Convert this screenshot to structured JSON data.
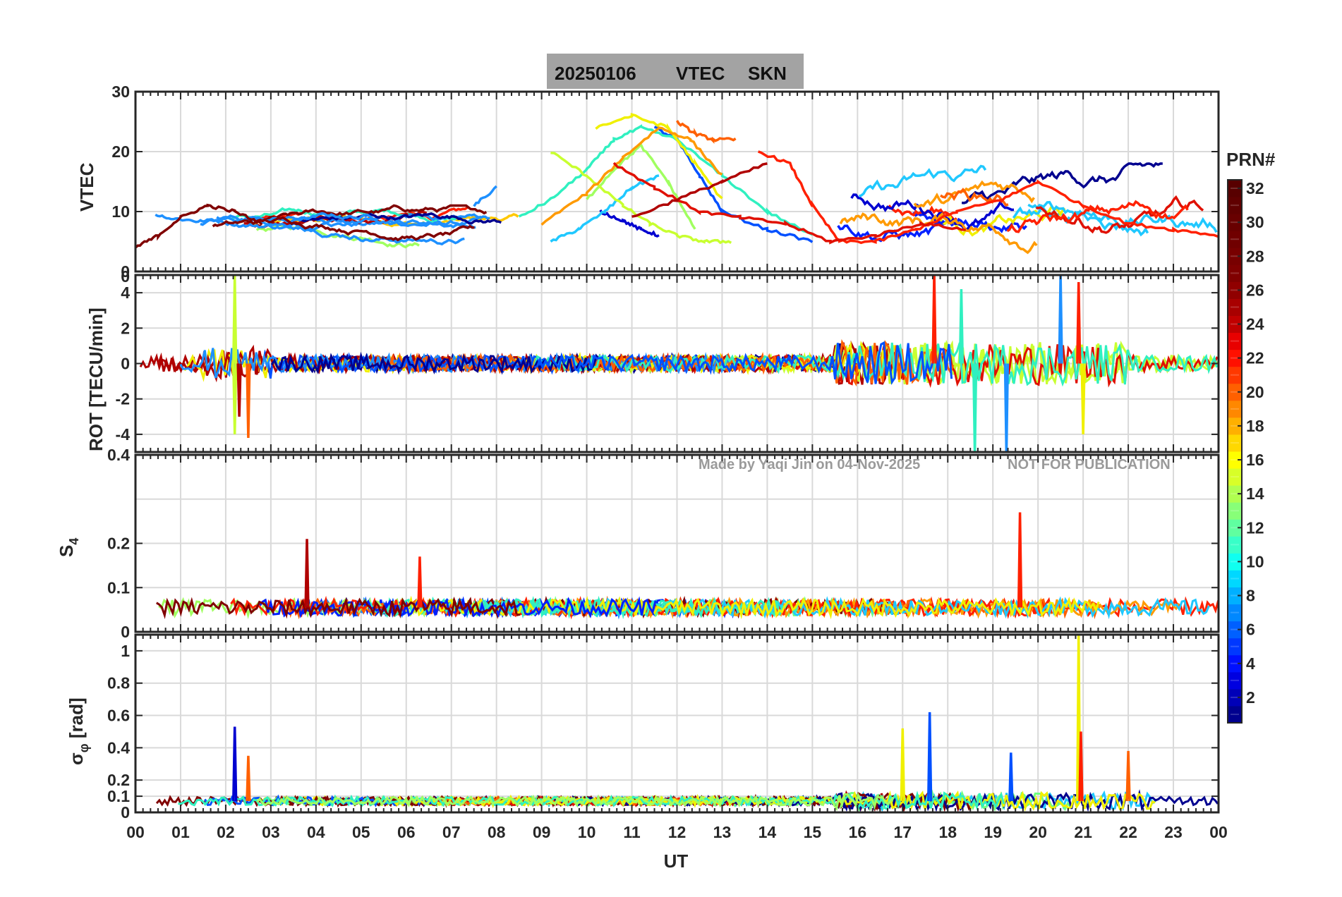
{
  "title": {
    "date": "20250106",
    "quantity": "VTEC",
    "station": "SKN"
  },
  "watermark": {
    "made_by": "Made by Yaqi Jin on 04-Nov-2025",
    "notice": "NOT FOR PUBLICATION"
  },
  "colorbar": {
    "label": "PRN#",
    "min": 1,
    "max": 32,
    "ticks": [
      "2",
      "4",
      "6",
      "8",
      "10",
      "12",
      "14",
      "16",
      "18",
      "20",
      "22",
      "24",
      "26",
      "28",
      "30",
      "32"
    ],
    "colormap": "jet"
  },
  "chart_data": [
    {
      "type": "line",
      "panel": "vtec",
      "ylabel": "VTEC",
      "ylim": [
        0,
        30
      ],
      "ytick_labels": [
        "10",
        "20",
        "30"
      ],
      "x_unit": "UT hour",
      "xlim": [
        0,
        24
      ],
      "series": [
        {
          "prn": 3,
          "color": "#0000d0",
          "x": [
            10.3,
            10.8,
            11.2,
            11.6
          ],
          "y": [
            10,
            8.5,
            7,
            6
          ]
        },
        {
          "prn": 6,
          "color": "#0050ff",
          "x": [
            11.5,
            12.0,
            12.5,
            13.0,
            14.0,
            15.0
          ],
          "y": [
            24,
            22,
            16,
            10,
            7,
            5
          ]
        },
        {
          "prn": 9,
          "color": "#1e90ff",
          "x": [
            7.5,
            8.0
          ],
          "y": [
            11,
            14
          ]
        },
        {
          "prn": 12,
          "color": "#20c8ff",
          "x": [
            9.2,
            9.8,
            10.4,
            11.0,
            11.6
          ],
          "y": [
            5,
            7,
            10,
            14,
            16
          ]
        },
        {
          "prn": 14,
          "color": "#30f0c0",
          "x": [
            8.5,
            9.2,
            10.0,
            10.6,
            11.2,
            12.0,
            13.0,
            14.0,
            15.0
          ],
          "y": [
            9,
            12,
            17,
            22,
            24,
            22,
            16,
            10,
            6
          ]
        },
        {
          "prn": 16,
          "color": "#a0ff60",
          "x": [
            10.0,
            10.6,
            11.2,
            11.8,
            12.4
          ],
          "y": [
            12,
            17,
            21,
            15,
            7
          ]
        },
        {
          "prn": 18,
          "color": "#c8ff30",
          "x": [
            9.2,
            10.0,
            10.8,
            11.4,
            12.0,
            12.6,
            13.2
          ],
          "y": [
            20,
            16,
            11,
            8,
            6,
            5,
            5
          ]
        },
        {
          "prn": 20,
          "color": "#f0f000",
          "x": [
            10.2,
            11.0,
            11.8,
            12.4,
            13.0
          ],
          "y": [
            24,
            26,
            24,
            18,
            12
          ]
        },
        {
          "prn": 23,
          "color": "#ff9a00",
          "x": [
            9.0,
            10.0,
            10.8,
            11.6,
            12.3,
            13.0
          ],
          "y": [
            8,
            13,
            19,
            24,
            22,
            16
          ]
        },
        {
          "prn": 25,
          "color": "#ff6000",
          "x": [
            12.0,
            12.4,
            12.8,
            13.3
          ],
          "y": [
            25,
            23,
            22,
            22
          ]
        },
        {
          "prn": 28,
          "color": "#ff2000",
          "x": [
            13.8,
            14.5,
            15.0,
            15.6,
            16.4,
            17.3,
            18.2,
            19.2,
            20.0,
            21.0,
            22.0,
            23.0,
            24.0
          ],
          "y": [
            20,
            18,
            11,
            5,
            5,
            7,
            10,
            12,
            15,
            11,
            8,
            7,
            6
          ]
        },
        {
          "prn": 29,
          "color": "#e01000",
          "x": [
            10.6,
            11.5,
            12.5,
            13.4,
            14.4,
            15.4,
            16.4,
            17.4,
            18.4
          ],
          "y": [
            18,
            14,
            10,
            9,
            8,
            5,
            6,
            8,
            7
          ]
        },
        {
          "prn": 31,
          "color": "#b00000",
          "x": [
            11.0,
            12.0,
            13.0,
            14.0
          ],
          "y": [
            9,
            12,
            15,
            18
          ]
        },
        {
          "prn": 32,
          "color": "#800000",
          "x": [
            0.0,
            0.5,
            1.0,
            1.6,
            2.2,
            2.8
          ],
          "y": [
            4,
            6,
            9,
            11,
            10,
            8
          ]
        }
      ]
    },
    {
      "type": "line",
      "panel": "rot",
      "ylabel": "ROT [TECU/min]",
      "ylim": [
        -5,
        5
      ],
      "ytick_labels": [
        "-4",
        "-2",
        "0",
        "2",
        "4"
      ],
      "spikes": [
        {
          "x": 2.2,
          "y": 5,
          "color": "#c8ff30"
        },
        {
          "x": 2.2,
          "y": -4,
          "color": "#c8ff30"
        },
        {
          "x": 2.3,
          "y": -3,
          "color": "#b00000"
        },
        {
          "x": 2.5,
          "y": -4.2,
          "color": "#ff6000"
        },
        {
          "x": 17.7,
          "y": 5.2,
          "color": "#ff2000"
        },
        {
          "x": 18.3,
          "y": 4.2,
          "color": "#30f0c0"
        },
        {
          "x": 18.6,
          "y": -5.2,
          "color": "#30f0c0"
        },
        {
          "x": 19.3,
          "y": -5.2,
          "color": "#1e90ff"
        },
        {
          "x": 20.5,
          "y": 5,
          "color": "#1e90ff"
        },
        {
          "x": 20.9,
          "y": 4.6,
          "color": "#ff2000"
        },
        {
          "x": 21.0,
          "y": -4,
          "color": "#f0f000"
        }
      ]
    },
    {
      "type": "line",
      "panel": "s4",
      "ylabel": "S4",
      "ylim": [
        0,
        0.4
      ],
      "ytick_labels": [
        "0.1",
        "0.2",
        "0.4"
      ],
      "spikes": [
        {
          "x": 3.8,
          "y": 0.21,
          "color": "#b00000"
        },
        {
          "x": 6.3,
          "y": 0.17,
          "color": "#ff2000"
        },
        {
          "x": 19.6,
          "y": 0.27,
          "color": "#ff2000"
        }
      ]
    },
    {
      "type": "line",
      "panel": "sigma_phi",
      "ylabel": "σφ [rad]",
      "ylim": [
        0,
        1.1
      ],
      "ytick_labels": [
        "0",
        "0.1",
        "0.2",
        "0.4",
        "0.6",
        "0.8",
        "1"
      ],
      "spikes": [
        {
          "x": 2.2,
          "y": 0.53,
          "color": "#0000d0"
        },
        {
          "x": 2.5,
          "y": 0.35,
          "color": "#ff6000"
        },
        {
          "x": 17.0,
          "y": 0.52,
          "color": "#f0f000"
        },
        {
          "x": 17.6,
          "y": 0.62,
          "color": "#0050ff"
        },
        {
          "x": 19.4,
          "y": 0.37,
          "color": "#0050ff"
        },
        {
          "x": 20.9,
          "y": 1.1,
          "color": "#f0f000"
        },
        {
          "x": 20.95,
          "y": 0.5,
          "color": "#ff2000"
        },
        {
          "x": 22.0,
          "y": 0.38,
          "color": "#ff6000"
        }
      ]
    }
  ],
  "xaxis": {
    "label": "UT",
    "tick_labels": [
      "00",
      "01",
      "02",
      "03",
      "04",
      "05",
      "06",
      "07",
      "08",
      "09",
      "10",
      "11",
      "12",
      "13",
      "14",
      "15",
      "16",
      "17",
      "18",
      "19",
      "20",
      "21",
      "22",
      "23",
      "00"
    ]
  }
}
